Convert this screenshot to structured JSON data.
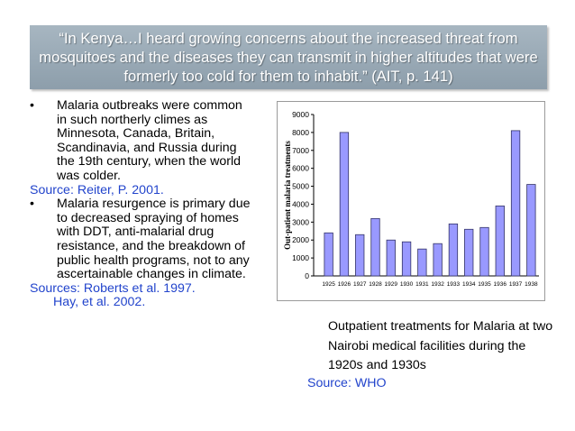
{
  "slide": {
    "quote": "“In Kenya…I heard growing concerns about the increased threat from mosquitoes and the diseases they can transmit in higher altitudes that were formerly too cold for them to inhabit.” (AIT, p. 141)",
    "bullets": [
      {
        "marker": "•",
        "text": "Malaria outbreaks were common in such northerly climes as Minnesota, Canada, Britain, Scandinavia, and Russia during the 19th century, when the world was colder."
      },
      {
        "marker": "•",
        "text": "Malaria resurgence is primary due to decreased spraying of homes with DDT, anti-malarial drug resistance, and the breakdown of public health programs, not to any ascertainable changes in climate."
      }
    ],
    "source_1": "Source: Reiter, P. 2001.",
    "source_2_line1": "Sources:  Roberts et al. 1997.",
    "source_2_line2": "Hay, et al. 2002.",
    "caption": "Outpatient treatments for Malaria at two Nairobi medical facilities during the 1920s and 1930s",
    "chart_source": "Source: WHO"
  },
  "chart_data": {
    "type": "bar",
    "ylabel": "Out-patient malaria treatments",
    "ylim": [
      0,
      9000
    ],
    "y_ticks": [
      "0",
      "1000",
      "2000",
      "3000",
      "4000",
      "5000",
      "6000",
      "7000",
      "8000",
      "9000"
    ],
    "categories": [
      "1925",
      "1926",
      "1927",
      "1928",
      "1929",
      "1930",
      "1931",
      "1932",
      "1933",
      "1934",
      "1935",
      "1936",
      "1937",
      "1938"
    ],
    "values": [
      2400,
      8000,
      2300,
      3200,
      2000,
      1900,
      1500,
      1800,
      2900,
      2600,
      2700,
      3900,
      8100,
      5100
    ],
    "bar_color": "#9999ff",
    "grid": false
  }
}
